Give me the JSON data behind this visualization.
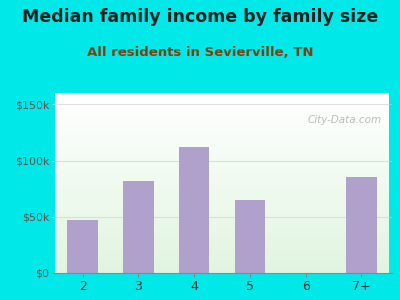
{
  "categories": [
    "2",
    "3",
    "4",
    "5",
    "6",
    "7+"
  ],
  "values": [
    47000,
    82000,
    112000,
    65000,
    0,
    85000
  ],
  "bar_color": "#b0a0cc",
  "title": "Median family income by family size",
  "subtitle": "All residents in Sevierville, TN",
  "title_fontsize": 12.5,
  "subtitle_fontsize": 9.5,
  "title_color": "#222222",
  "subtitle_color": "#7a4010",
  "yticks": [
    0,
    50000,
    100000,
    150000
  ],
  "ytick_labels": [
    "$0",
    "$50k",
    "$100k",
    "$150k"
  ],
  "ylim": [
    0,
    160000
  ],
  "bg_color": "#00e8e8",
  "watermark": "City-Data.com",
  "bar_width": 0.55,
  "grid_color": "#cccccc",
  "grid_alpha": 0.6
}
